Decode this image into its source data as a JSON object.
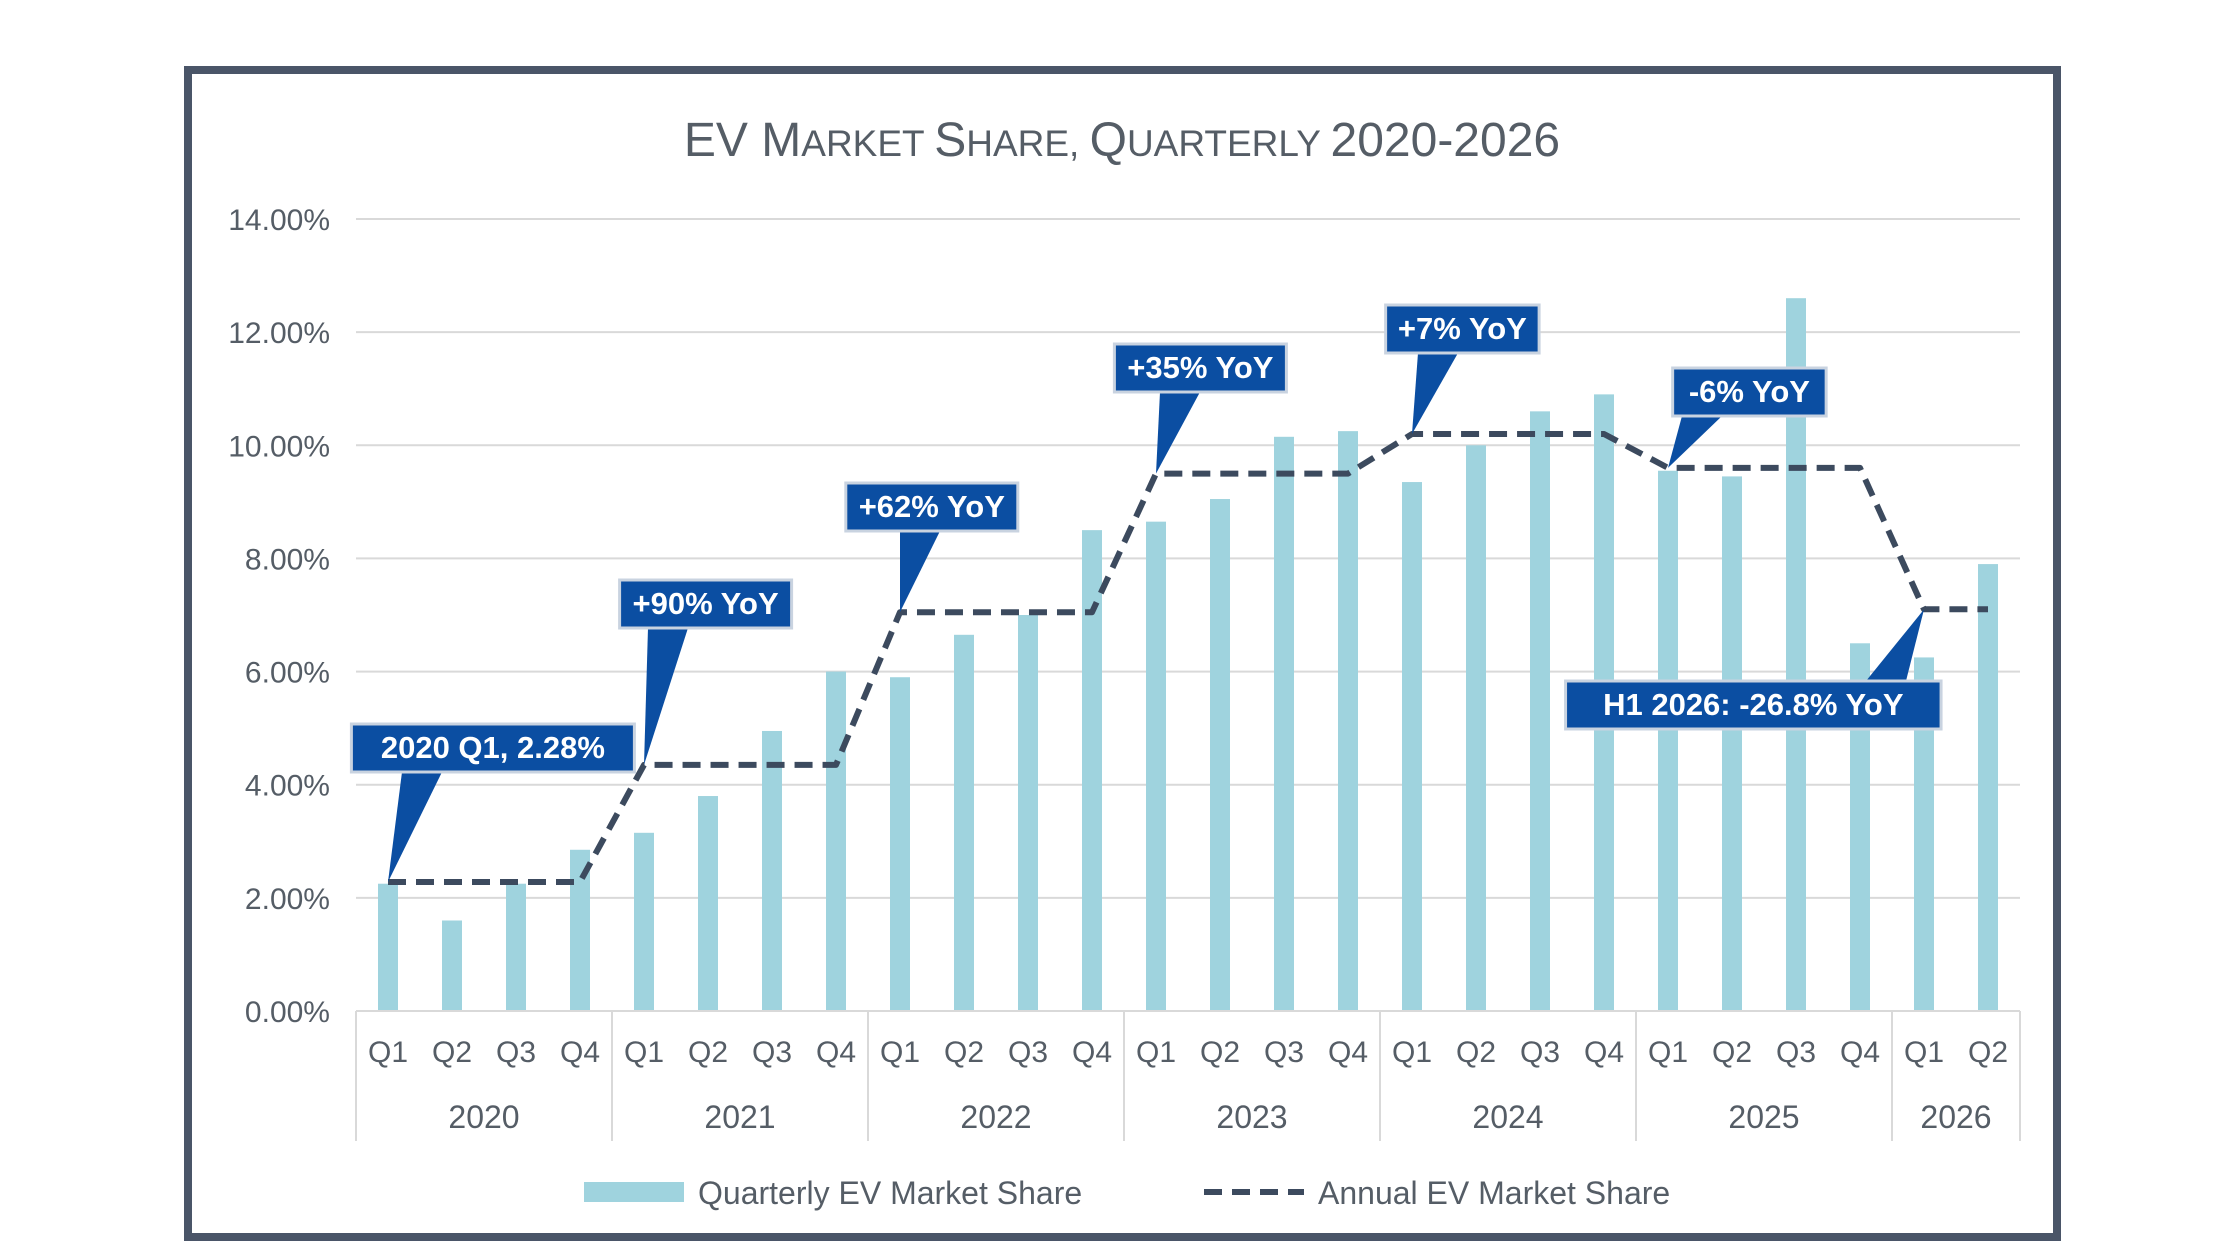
{
  "chart_data": {
    "type": "bar",
    "title": "EV Market Share, Quarterly 2020-2026",
    "title_main": {
      "E": "EV ",
      "M": "M",
      "arket": "ARKET ",
      "S": "S",
      "hare": "HARE, ",
      "Q": "Q",
      "uarterly": "UARTERLY ",
      "years": "2020-2026"
    },
    "ylim": [
      0,
      14
    ],
    "y_ticks": [
      "0.00%",
      "2.00%",
      "4.00%",
      "6.00%",
      "8.00%",
      "10.00%",
      "12.00%",
      "14.00%"
    ],
    "y_tick_values": [
      0,
      2,
      4,
      6,
      8,
      10,
      12,
      14
    ],
    "grid": true,
    "legend_position": "bottom",
    "groups": [
      {
        "year": "2020",
        "quarters": [
          "Q1",
          "Q2",
          "Q3",
          "Q4"
        ]
      },
      {
        "year": "2021",
        "quarters": [
          "Q1",
          "Q2",
          "Q3",
          "Q4"
        ]
      },
      {
        "year": "2022",
        "quarters": [
          "Q1",
          "Q2",
          "Q3",
          "Q4"
        ]
      },
      {
        "year": "2023",
        "quarters": [
          "Q1",
          "Q2",
          "Q3",
          "Q4"
        ]
      },
      {
        "year": "2024",
        "quarters": [
          "Q1",
          "Q2",
          "Q3",
          "Q4"
        ]
      },
      {
        "year": "2025",
        "quarters": [
          "Q1",
          "Q2",
          "Q3",
          "Q4"
        ]
      },
      {
        "year": "2026",
        "quarters": [
          "Q1",
          "Q2"
        ]
      }
    ],
    "series": [
      {
        "name": "Quarterly EV Market Share",
        "kind": "bar",
        "color": "#9fd3de",
        "values": [
          2.25,
          1.6,
          2.25,
          2.85,
          3.15,
          3.8,
          4.95,
          6.0,
          5.9,
          6.65,
          7.0,
          8.5,
          8.65,
          9.05,
          10.15,
          10.25,
          9.35,
          10.0,
          10.6,
          10.9,
          9.55,
          9.45,
          12.6,
          6.5,
          6.25,
          7.9
        ]
      },
      {
        "name": "Annual EV Market Share",
        "kind": "line",
        "style": "dashed",
        "color": "#3c4a5e",
        "values": [
          2.28,
          2.28,
          2.28,
          2.28,
          4.35,
          4.35,
          4.35,
          4.35,
          7.05,
          7.05,
          7.05,
          7.05,
          9.5,
          9.5,
          9.5,
          9.5,
          10.2,
          10.2,
          10.2,
          10.2,
          9.6,
          9.6,
          9.6,
          9.6,
          7.1,
          7.1
        ]
      }
    ],
    "callouts": [
      {
        "text": "2020 Q1, 2.28%",
        "point_index": 0
      },
      {
        "text": "+90% YoY",
        "point_index": 4
      },
      {
        "text": "+62% YoY",
        "point_index": 8
      },
      {
        "text": "+35% YoY",
        "point_index": 12
      },
      {
        "text": "+7% YoY",
        "point_index": 16
      },
      {
        "text": "-6% YoY",
        "point_index": 20
      },
      {
        "text": "H1 2026: -26.8% YoY",
        "point_index": 24
      }
    ],
    "callout_color": "#0b4ea2",
    "text_color": "#555d66",
    "grid_color": "#d9d9d9"
  }
}
